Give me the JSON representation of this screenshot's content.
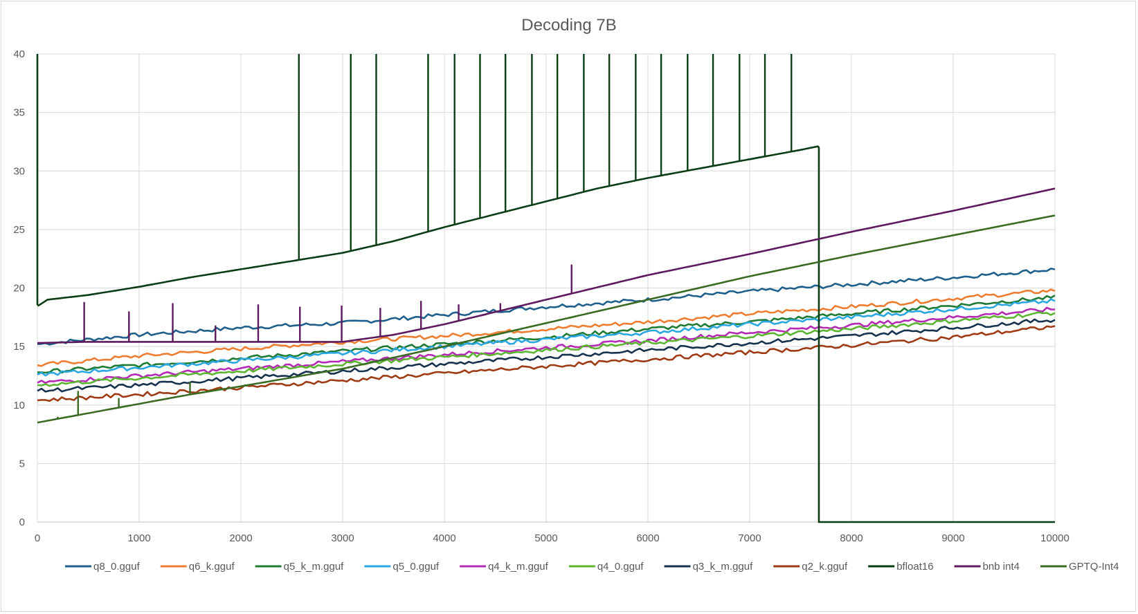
{
  "chart_data": {
    "type": "line",
    "title": "Decoding 7B",
    "xlabel": "",
    "ylabel": "",
    "xlim": [
      0,
      10000
    ],
    "ylim": [
      0,
      40
    ],
    "x_ticks": [
      0,
      1000,
      2000,
      3000,
      4000,
      5000,
      6000,
      7000,
      8000,
      9000,
      10000
    ],
    "y_ticks": [
      0,
      5,
      10,
      15,
      20,
      25,
      30,
      35,
      40
    ],
    "grid": true,
    "legend_position": "bottom",
    "series": [
      {
        "name": "q8_0.gguf",
        "color": "#1f5f8b",
        "x": [
          0,
          1000,
          2000,
          3000,
          4000,
          5000,
          6000,
          7000,
          8000,
          9000,
          10000
        ],
        "y": [
          15.2,
          16.0,
          16.6,
          17.0,
          17.7,
          18.4,
          19.0,
          19.7,
          20.3,
          20.9,
          21.6
        ],
        "spikes": []
      },
      {
        "name": "q6_k.gguf",
        "color": "#ed7d31",
        "x": [
          0,
          1000,
          2000,
          3000,
          4000,
          5000,
          6000,
          7000,
          8000,
          9000,
          10000
        ],
        "y": [
          13.4,
          14.2,
          14.8,
          15.4,
          15.9,
          16.5,
          17.1,
          17.8,
          18.4,
          19.1,
          19.8
        ],
        "spikes": []
      },
      {
        "name": "q5_k_m.gguf",
        "color": "#1e7b34",
        "x": [
          0,
          1000,
          2000,
          3000,
          4000,
          5000,
          6000,
          7000,
          8000,
          9000,
          10000
        ],
        "y": [
          12.8,
          13.4,
          14.0,
          14.6,
          15.2,
          15.8,
          16.5,
          17.1,
          17.8,
          18.5,
          19.2
        ],
        "spikes": []
      },
      {
        "name": "q5_0.gguf",
        "color": "#2aa7e0",
        "x": [
          0,
          1000,
          2000,
          3000,
          4000,
          5000,
          6000,
          7000,
          8000,
          9000,
          10000
        ],
        "y": [
          12.6,
          13.2,
          13.8,
          14.4,
          15.0,
          15.6,
          16.2,
          16.9,
          17.5,
          18.2,
          18.9
        ],
        "spikes": []
      },
      {
        "name": "q4_k_m.gguf",
        "color": "#b42ab4",
        "x": [
          0,
          1000,
          2000,
          3000,
          4000,
          5000,
          6000,
          7000,
          8000,
          9000,
          10000
        ],
        "y": [
          11.9,
          12.5,
          13.1,
          13.7,
          14.3,
          14.9,
          15.5,
          16.2,
          16.8,
          17.5,
          18.2
        ],
        "spikes": []
      },
      {
        "name": "q4_0.gguf",
        "color": "#5cb531",
        "x": [
          0,
          1000,
          2000,
          3000,
          4000,
          5000,
          6000,
          7000,
          8000,
          9000,
          10000
        ],
        "y": [
          11.7,
          12.3,
          12.9,
          13.5,
          14.1,
          14.7,
          15.3,
          15.9,
          16.5,
          17.2,
          17.9
        ],
        "spikes": []
      },
      {
        "name": "q3_k_m.gguf",
        "color": "#16324f",
        "x": [
          0,
          1000,
          2000,
          3000,
          4000,
          5000,
          6000,
          7000,
          8000,
          9000,
          10000
        ],
        "y": [
          11.2,
          11.7,
          12.3,
          12.9,
          13.5,
          14.1,
          14.7,
          15.3,
          15.9,
          16.6,
          17.3
        ],
        "spikes": []
      },
      {
        "name": "q2_k.gguf",
        "color": "#9e3b14",
        "x": [
          0,
          1000,
          2000,
          3000,
          4000,
          5000,
          6000,
          7000,
          8000,
          9000,
          10000
        ],
        "y": [
          10.4,
          10.9,
          11.5,
          12.1,
          12.7,
          13.3,
          13.9,
          14.5,
          15.1,
          15.8,
          16.7
        ],
        "spikes": []
      },
      {
        "name": "bfloat16",
        "color": "#0b3d14",
        "x": [
          0,
          0,
          10,
          100,
          500,
          1000,
          1500,
          2000,
          2500,
          3000,
          3500,
          4000,
          4500,
          5000,
          5500,
          6000,
          6500,
          7000,
          7500,
          7670,
          7680,
          7680,
          10000
        ],
        "y": [
          40,
          18.6,
          18.5,
          19.0,
          19.4,
          20.1,
          20.9,
          21.6,
          22.3,
          23.0,
          24.0,
          25.2,
          26.3,
          27.4,
          28.5,
          29.4,
          30.2,
          31.0,
          31.8,
          32.1,
          32.0,
          0,
          0
        ],
        "spikes": [
          [
            2570,
            22.5
          ],
          [
            3080,
            23.1
          ],
          [
            3330,
            23.7
          ],
          [
            3840,
            24.9
          ],
          [
            4100,
            25.4
          ],
          [
            4350,
            25.9
          ],
          [
            4600,
            26.4
          ],
          [
            4860,
            26.9
          ],
          [
            5110,
            27.3
          ],
          [
            5370,
            27.8
          ],
          [
            5620,
            28.3
          ],
          [
            5880,
            28.8
          ],
          [
            6130,
            29.3
          ],
          [
            6390,
            29.8
          ],
          [
            6640,
            30.3
          ],
          [
            6900,
            30.8
          ],
          [
            7150,
            31.2
          ],
          [
            7410,
            31.7
          ]
        ],
        "spike_top": 40
      },
      {
        "name": "bnb int4",
        "color": "#5e1a5e",
        "x": [
          0,
          500,
          1000,
          1500,
          2000,
          2500,
          3000,
          3500,
          4000,
          5000,
          6000,
          7000,
          8000,
          9000,
          10000
        ],
        "y": [
          15.3,
          15.4,
          15.4,
          15.4,
          15.4,
          15.4,
          15.4,
          16.0,
          16.9,
          19.0,
          21.1,
          22.9,
          24.8,
          26.6,
          28.5
        ],
        "spikes": [
          [
            460,
            18.8
          ],
          [
            900,
            18.0
          ],
          [
            1330,
            18.7
          ],
          [
            1750,
            16.8
          ],
          [
            2170,
            18.6
          ],
          [
            2580,
            18.4
          ],
          [
            2990,
            18.5
          ],
          [
            3370,
            18.3
          ],
          [
            3770,
            18.9
          ],
          [
            4140,
            18.6
          ],
          [
            4550,
            18.7
          ],
          [
            5250,
            22.0
          ]
        ]
      },
      {
        "name": "GPTQ-Int4",
        "color": "#3a6b22",
        "x": [
          0,
          500,
          1000,
          1500,
          2000,
          3000,
          4000,
          5000,
          6000,
          7000,
          8000,
          9000,
          10000
        ],
        "y": [
          8.5,
          9.3,
          10.1,
          10.9,
          11.6,
          13.1,
          15.0,
          17.0,
          19.0,
          21.0,
          22.8,
          24.5,
          26.2
        ],
        "spikes": [
          [
            400,
            11.2
          ],
          [
            800,
            10.6
          ],
          [
            1500,
            12.0
          ],
          [
            200,
            9.0
          ]
        ]
      }
    ]
  }
}
